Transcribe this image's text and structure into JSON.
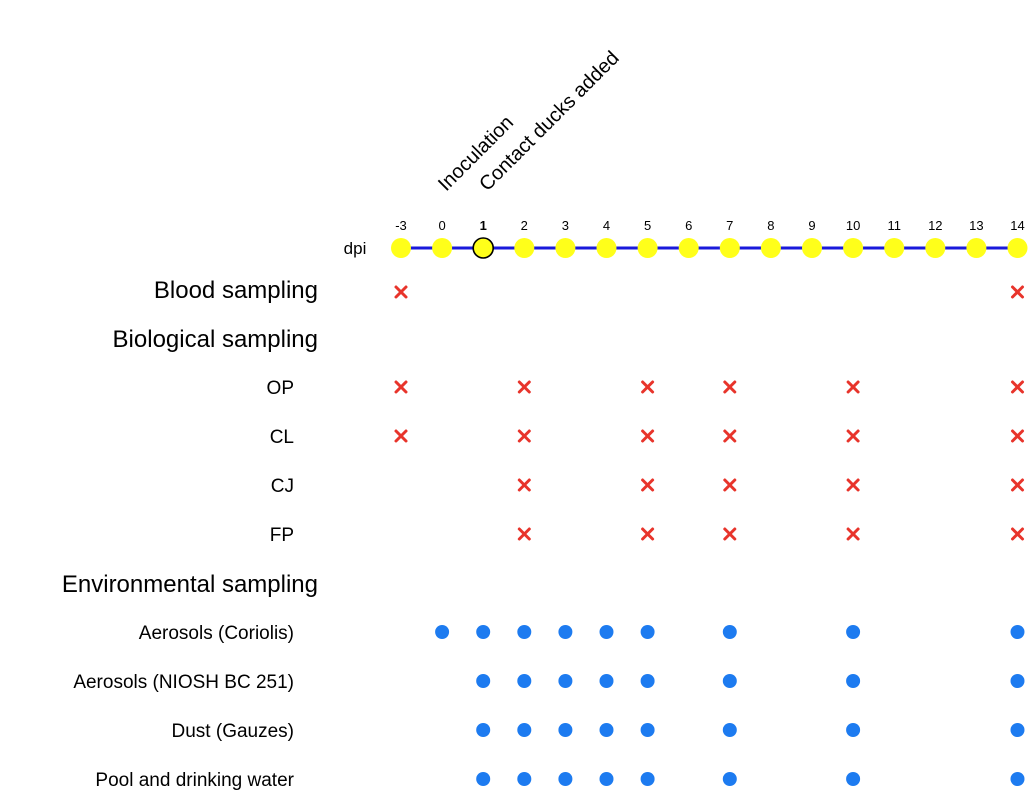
{
  "timeline": {
    "axis_label": "dpi",
    "days": [
      "-3",
      "0",
      "1",
      "2",
      "3",
      "4",
      "5",
      "6",
      "7",
      "8",
      "9",
      "10",
      "11",
      "12",
      "13",
      "14"
    ],
    "highlighted_day": "1",
    "events": [
      {
        "label": "Inoculation",
        "day": "0"
      },
      {
        "label": "Contact ducks added",
        "day": "1"
      }
    ]
  },
  "colors": {
    "timeline_line": "#1a1adb",
    "timeline_dot": "#ffff1a",
    "timeline_highlight_stroke": "#000000",
    "cross": "#e8342b",
    "dot": "#1d7bf0"
  },
  "sections": [
    {
      "title": "Blood sampling",
      "rows": [
        {
          "label": "",
          "marker": "cross",
          "days": [
            "-3",
            "14"
          ]
        }
      ]
    },
    {
      "title": "Biological sampling",
      "rows": [
        {
          "label": "OP",
          "marker": "cross",
          "days": [
            "-3",
            "2",
            "5",
            "7",
            "10",
            "14"
          ]
        },
        {
          "label": "CL",
          "marker": "cross",
          "days": [
            "-3",
            "2",
            "5",
            "7",
            "10",
            "14"
          ]
        },
        {
          "label": "CJ",
          "marker": "cross",
          "days": [
            "2",
            "5",
            "7",
            "10",
            "14"
          ]
        },
        {
          "label": "FP",
          "marker": "cross",
          "days": [
            "2",
            "5",
            "7",
            "10",
            "14"
          ]
        }
      ]
    },
    {
      "title": "Environmental sampling",
      "rows": [
        {
          "label": "Aerosols (Coriolis)",
          "marker": "dot",
          "days": [
            "0",
            "1",
            "2",
            "3",
            "4",
            "5",
            "7",
            "10",
            "14"
          ]
        },
        {
          "label": "Aerosols (NIOSH BC 251)",
          "marker": "dot",
          "days": [
            "1",
            "2",
            "3",
            "4",
            "5",
            "7",
            "10",
            "14"
          ]
        },
        {
          "label": "Dust (Gauzes)",
          "marker": "dot",
          "days": [
            "1",
            "2",
            "3",
            "4",
            "5",
            "7",
            "10",
            "14"
          ]
        },
        {
          "label": "Pool and drinking water",
          "marker": "dot",
          "days": [
            "1",
            "2",
            "3",
            "4",
            "5",
            "7",
            "10",
            "14"
          ]
        }
      ]
    }
  ]
}
